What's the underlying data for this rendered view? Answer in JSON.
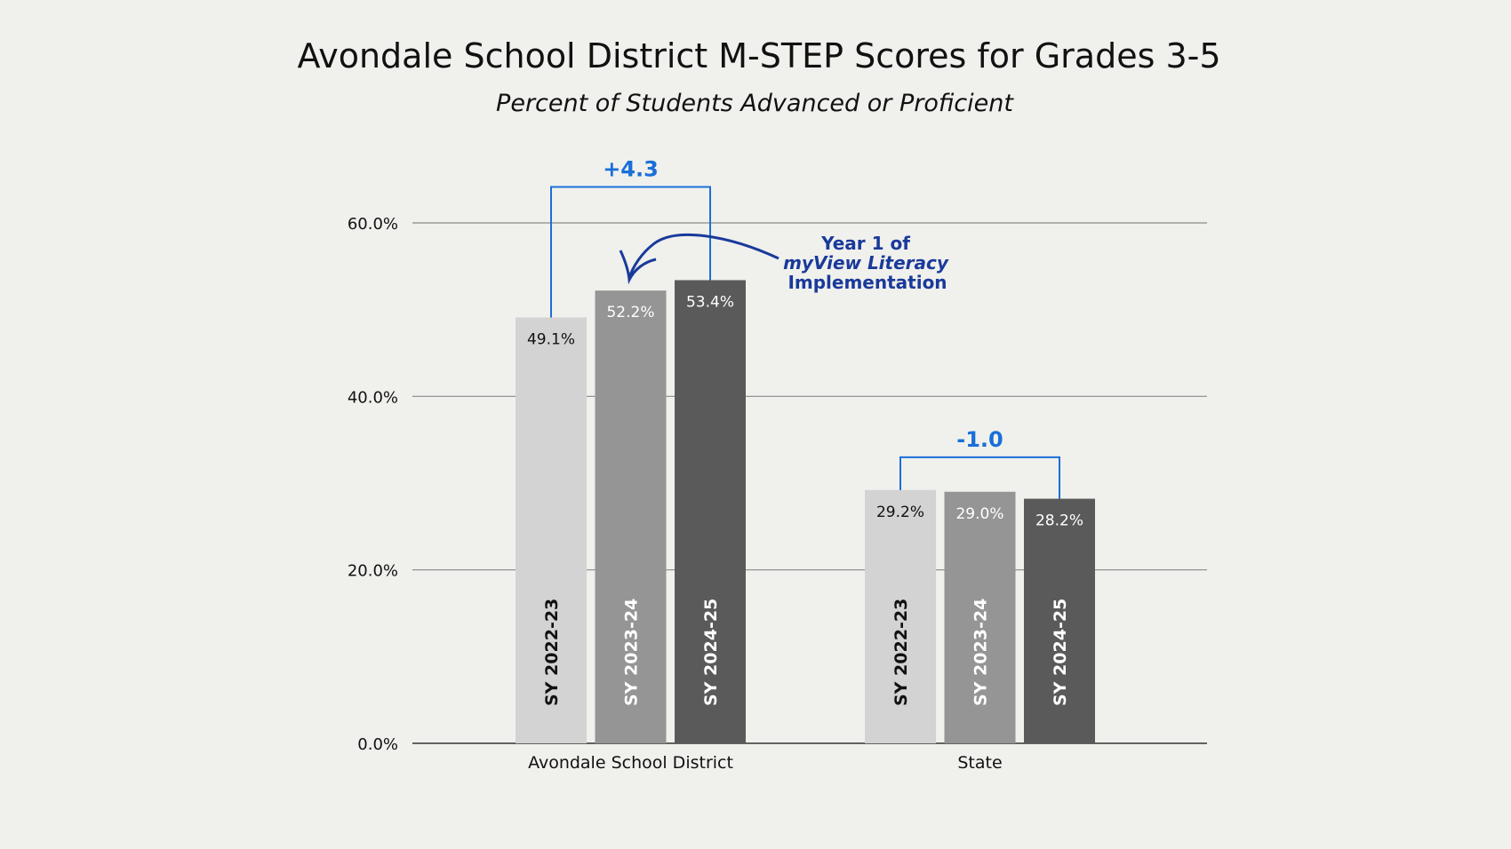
{
  "chart_data": {
    "type": "bar",
    "title": "Avondale School District M-STEP Scores for Grades 3-5",
    "subtitle": "Percent of Students Advanced or Proficient",
    "xlabel": "",
    "ylabel": "",
    "ylim": [
      0,
      60
    ],
    "yticks": [
      "0.0%",
      "20.0%",
      "40.0%",
      "60.0%"
    ],
    "ytick_values": [
      0,
      20,
      40,
      60
    ],
    "grid": true,
    "categories": [
      "Avondale School District",
      "State"
    ],
    "series": [
      {
        "name": "SY 2022-23",
        "values": [
          49.1,
          29.2
        ],
        "labels": [
          "49.1%",
          "29.2%"
        ],
        "color": "#d3d3d3",
        "text_color": "#111111"
      },
      {
        "name": "SY 2023-24",
        "values": [
          52.2,
          29.0
        ],
        "labels": [
          "52.2%",
          "29.0%"
        ],
        "color": "#959595",
        "text_color": "#ffffff"
      },
      {
        "name": "SY 2024-25",
        "values": [
          53.4,
          28.2
        ],
        "labels": [
          "53.4%",
          "28.2%"
        ],
        "color": "#5a5a5a",
        "text_color": "#ffffff"
      }
    ],
    "annotations": [
      {
        "text": "+4.3",
        "category": "Avondale School District",
        "color": "#1a6fd8"
      },
      {
        "text": "-1.0",
        "category": "State",
        "color": "#1a6fd8"
      }
    ],
    "callout": {
      "lines": [
        "Year 1 of",
        "myView Literacy",
        "Implementation"
      ],
      "color": "#1a3a9a"
    }
  }
}
